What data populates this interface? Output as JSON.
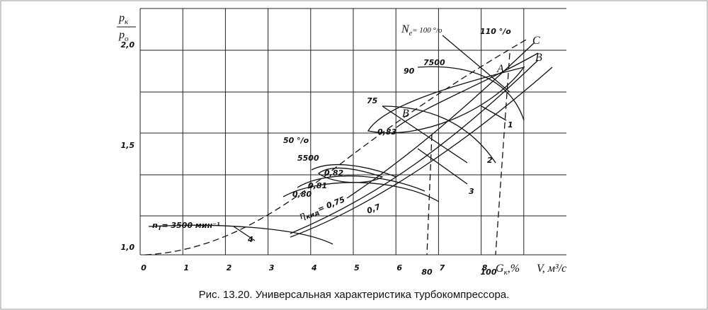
{
  "figure": {
    "y_title": {
      "top": "p",
      "top_sub": "к",
      "bottom": "p",
      "bottom_sub": "o"
    },
    "x_ticks": [
      "0",
      "1",
      "2",
      "3",
      "4",
      "5",
      "6",
      "7",
      "8"
    ],
    "y_ticks": [
      "1,0",
      "1,5",
      "2,0"
    ],
    "x_extra_ticks": [
      "80",
      "100"
    ],
    "x_title": "G",
    "x_title_sub": "к",
    "x_title_unit": ",%",
    "x_title_2": "V, м³/с",
    "annotations": {
      "ne": "N",
      "ne_sub": "e",
      "ne_rest": "= 100 °/о",
      "p110": "110 °/о",
      "c": "C",
      "b1": "B",
      "a": "A",
      "b2": "B",
      "n7500": "7500",
      "p90": "90",
      "p75": "75",
      "e083": "0,83",
      "l1": "1",
      "l2": "2",
      "l3": "3",
      "p50": "50 °/о",
      "n5500": "5500",
      "e082": "0,82",
      "e081": "0,81",
      "e080": "0,80",
      "eta": "η",
      "eta_sub": "кид",
      "eta_rest": "= 0,75",
      "e07": "0,7",
      "nt": "n",
      "nt_sub": "T",
      "nt_rest": "= 3500 мин⁻¹",
      "l4": "4"
    },
    "caption": "Рис. 13.20. Универсальная характеристика турбокомпрессора."
  }
}
